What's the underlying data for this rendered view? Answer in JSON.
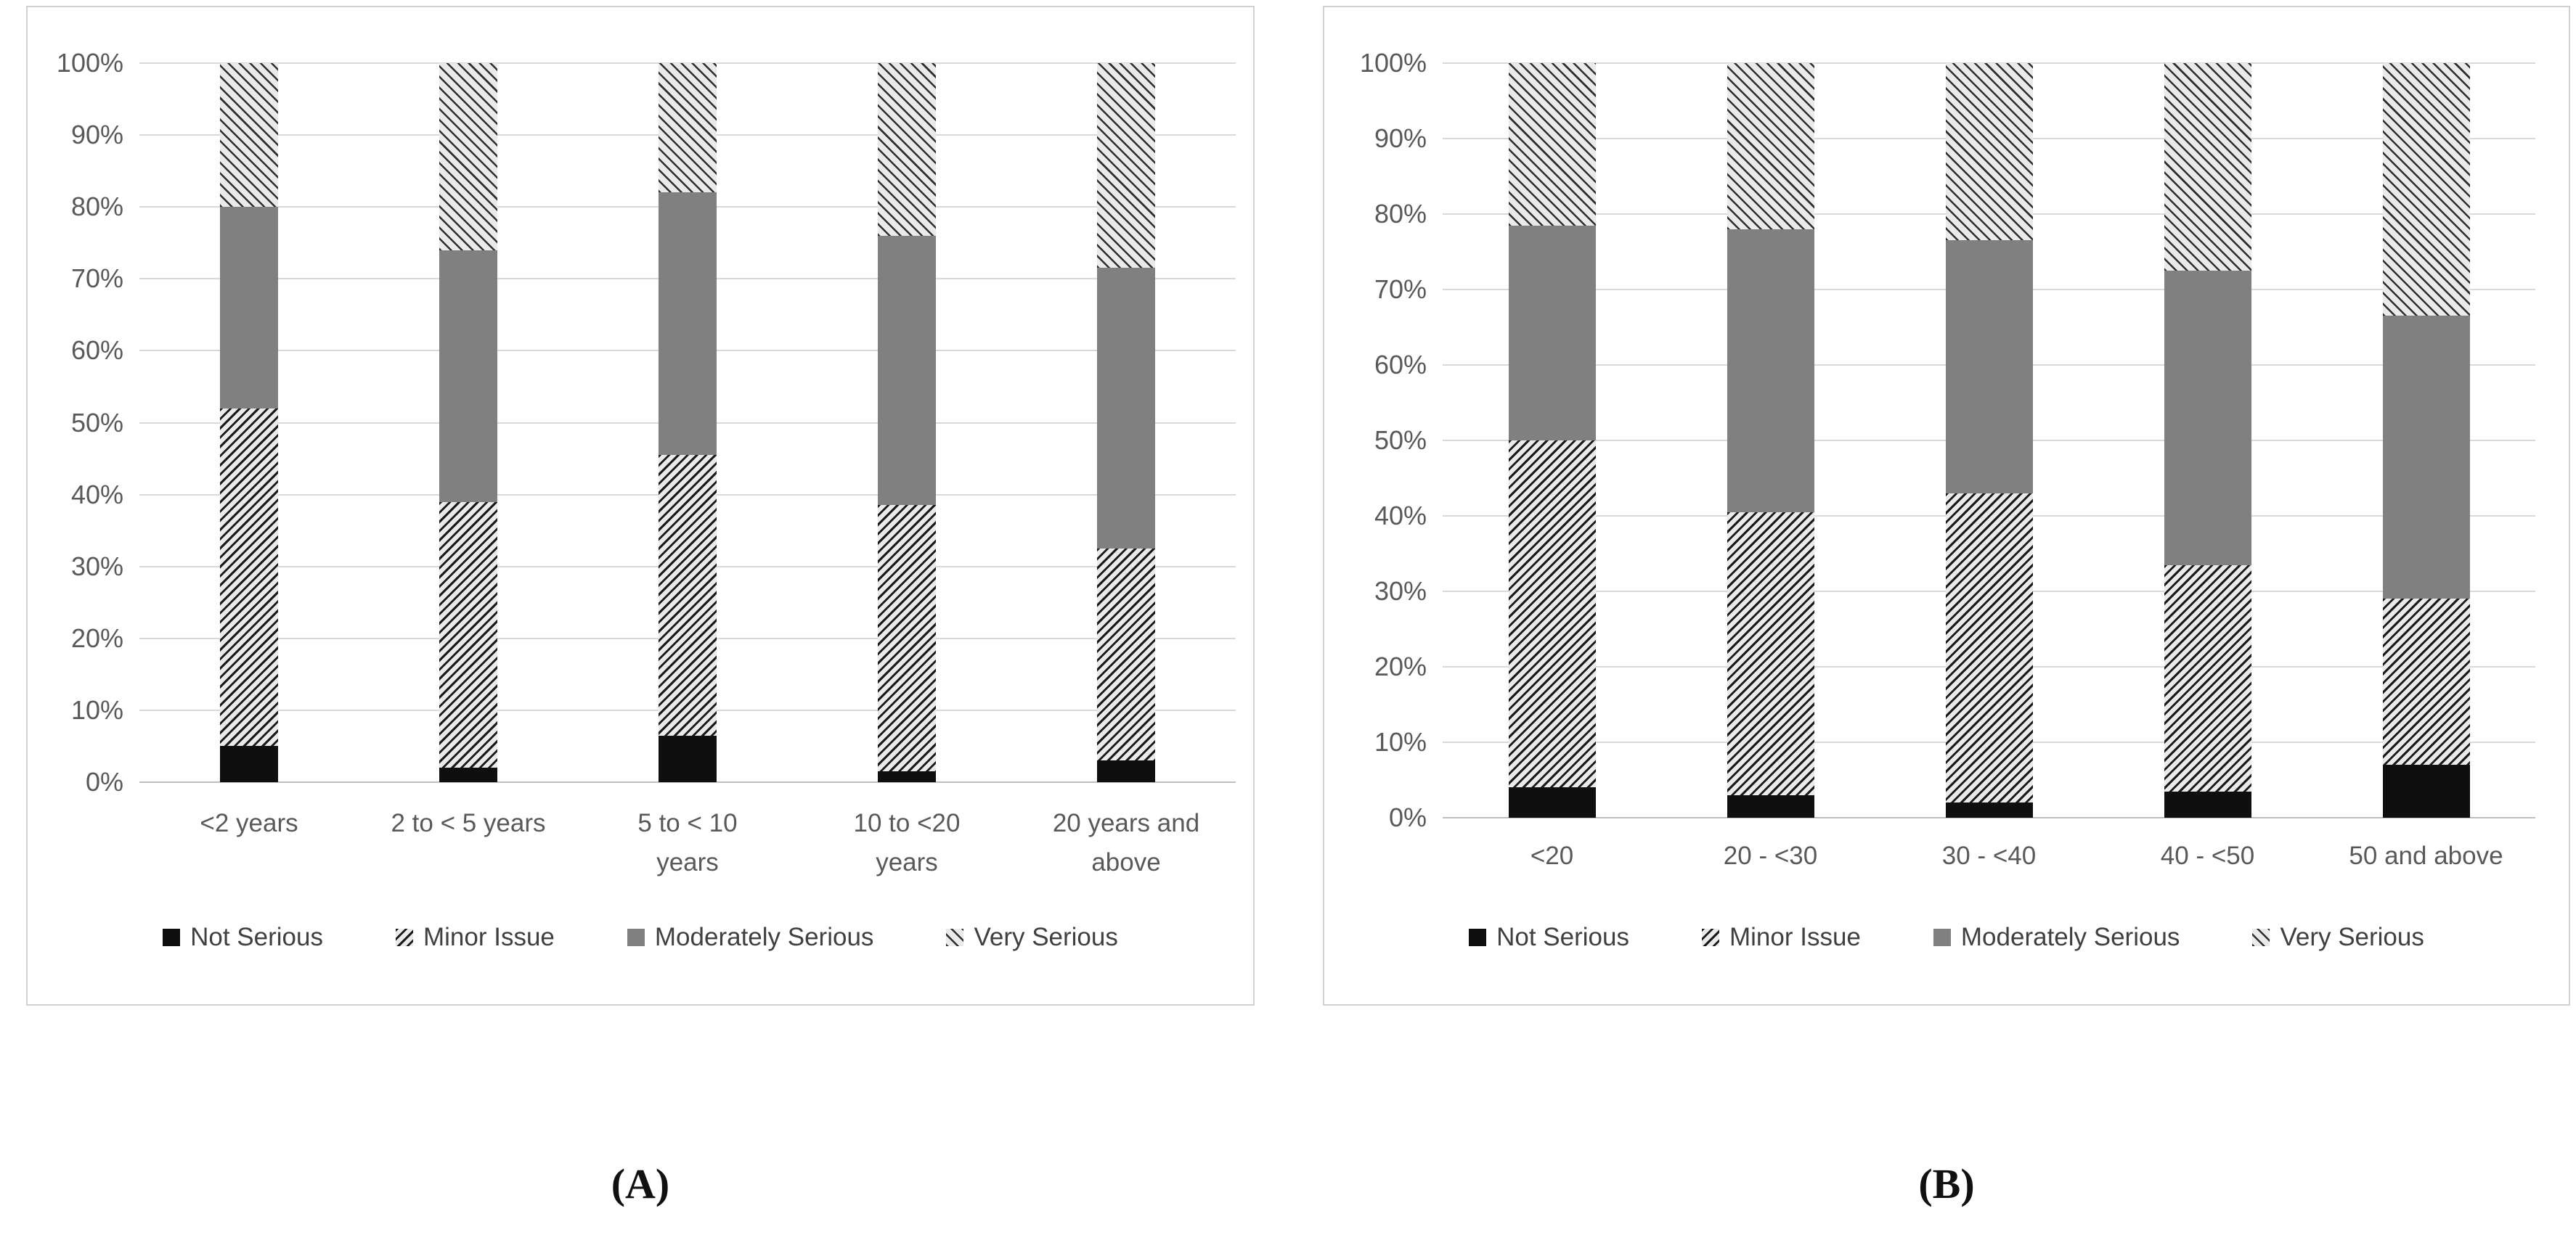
{
  "figure": {
    "captions": {
      "a": "(A)",
      "b": "(B)"
    }
  },
  "colors": {
    "not_serious": "#0f0f0f",
    "minor_issue_hatch_fg": "#1a1a1a",
    "minor_issue_hatch_bg": "#eaeaea",
    "moderately_serious": "#808080",
    "very_serious_hatch_fg": "#2e2e2e",
    "very_serious_hatch_bg": "#eaeaea",
    "gridline": "#d9d9d9",
    "axis_line": "#bfbfbf",
    "axis_text": "#595959",
    "legend_text": "#404040",
    "panel_border": "#d2d2d2"
  },
  "chart_data": [
    {
      "type": "bar",
      "subtype": "stacked-100",
      "panel": "A",
      "title": "",
      "xlabel": "",
      "ylabel": "",
      "ylim": [
        0,
        100
      ],
      "grid": true,
      "legend_position": "bottom",
      "y_ticks": [
        "0%",
        "10%",
        "20%",
        "30%",
        "40%",
        "50%",
        "60%",
        "70%",
        "80%",
        "90%",
        "100%"
      ],
      "categories": [
        "<2 years",
        "2 to < 5 years",
        "5 to < 10\nyears",
        "10 to <20\nyears",
        "20 years and\nabove"
      ],
      "series": [
        {
          "name": "Not Serious",
          "style": "solid-black",
          "values": [
            5,
            2,
            6.5,
            1.5,
            3
          ]
        },
        {
          "name": "Minor Issue",
          "style": "hatch-back",
          "values": [
            47,
            37,
            39,
            37,
            29.5
          ]
        },
        {
          "name": "Moderately Serious",
          "style": "solid-gray",
          "values": [
            28,
            35,
            36.5,
            37.5,
            39
          ]
        },
        {
          "name": "Very Serious",
          "style": "hatch-fwd",
          "values": [
            20,
            26,
            18,
            24,
            28.5
          ]
        }
      ]
    },
    {
      "type": "bar",
      "subtype": "stacked-100",
      "panel": "B",
      "title": "",
      "xlabel": "",
      "ylabel": "",
      "ylim": [
        0,
        100
      ],
      "grid": true,
      "legend_position": "bottom",
      "y_ticks": [
        "0%",
        "10%",
        "20%",
        "30%",
        "40%",
        "50%",
        "60%",
        "70%",
        "80%",
        "90%",
        "100%"
      ],
      "categories": [
        "<20",
        "20 - <30",
        "30 - <40",
        "40 - <50",
        "50 and above"
      ],
      "series": [
        {
          "name": "Not Serious",
          "style": "solid-black",
          "values": [
            4,
            3,
            2,
            3.5,
            7
          ]
        },
        {
          "name": "Minor Issue",
          "style": "hatch-back",
          "values": [
            46,
            37.5,
            41,
            30,
            22
          ]
        },
        {
          "name": "Moderately Serious",
          "style": "solid-gray",
          "values": [
            28.5,
            37.5,
            33.5,
            39,
            37.5
          ]
        },
        {
          "name": "Very Serious",
          "style": "hatch-fwd",
          "values": [
            21.5,
            22,
            23.5,
            27.5,
            33.5
          ]
        }
      ]
    }
  ]
}
